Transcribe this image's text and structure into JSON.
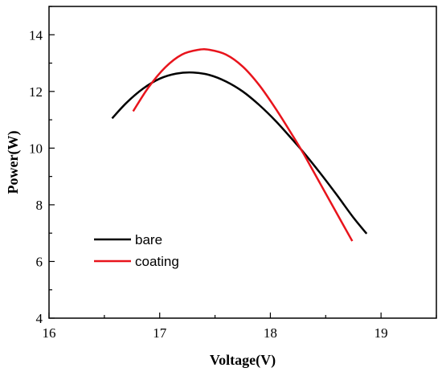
{
  "chart_data": {
    "type": "line",
    "xlabel": "Voltage(V)",
    "ylabel": "Power(W)",
    "xlim": [
      16,
      19.5
    ],
    "ylim": [
      4,
      15
    ],
    "xticks": [
      16,
      17,
      18,
      19
    ],
    "yticks": [
      4,
      6,
      8,
      10,
      12,
      14
    ],
    "legend_position": "lower-left",
    "grid": false,
    "series": [
      {
        "name": "bare",
        "color": "#000000",
        "x": [
          16.57,
          16.7,
          16.85,
          17.0,
          17.15,
          17.3,
          17.45,
          17.6,
          17.75,
          17.9,
          18.05,
          18.2,
          18.3,
          18.45,
          18.6,
          18.75,
          18.87
        ],
        "y": [
          11.05,
          11.6,
          12.1,
          12.45,
          12.63,
          12.67,
          12.58,
          12.35,
          12.0,
          11.52,
          10.95,
          10.3,
          9.85,
          9.12,
          8.35,
          7.55,
          6.98
        ]
      },
      {
        "name": "coating",
        "color": "#e8141c",
        "x": [
          16.76,
          16.9,
          17.05,
          17.2,
          17.35,
          17.45,
          17.6,
          17.75,
          17.9,
          18.05,
          18.2,
          18.3,
          18.45,
          18.6,
          18.74
        ],
        "y": [
          11.3,
          12.15,
          12.85,
          13.3,
          13.47,
          13.47,
          13.3,
          12.88,
          12.22,
          11.38,
          10.45,
          9.8,
          8.75,
          7.7,
          6.72
        ]
      }
    ]
  }
}
